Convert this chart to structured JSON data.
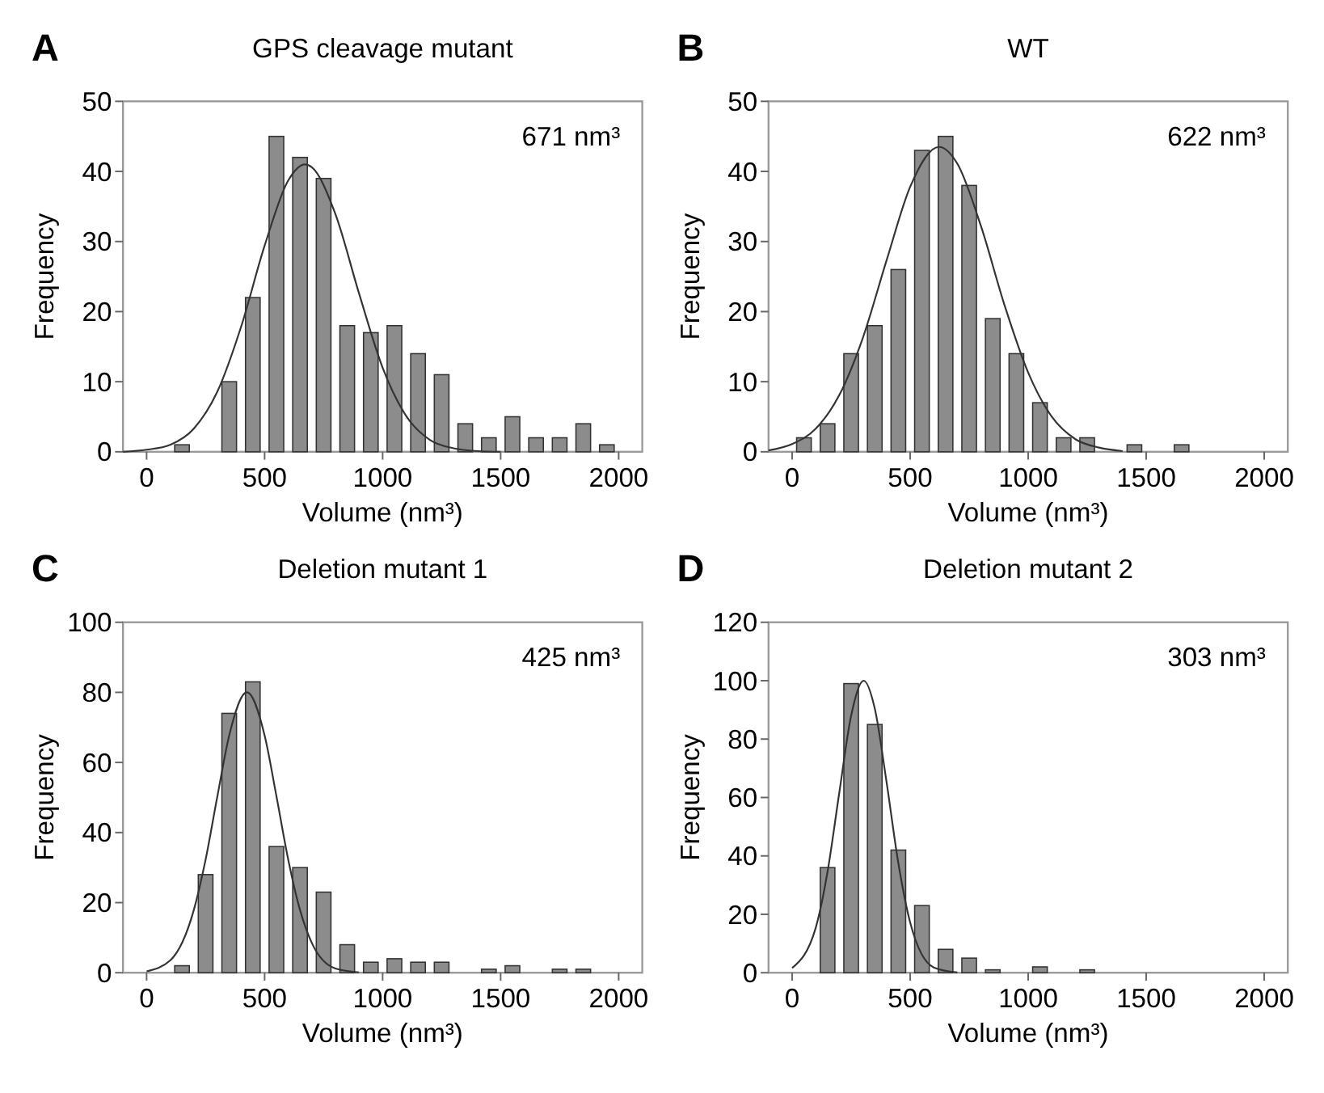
{
  "chart_data": [
    {
      "type": "histogram",
      "title": "GPS cleavage mutant",
      "xlabel": "Volume (nm³)",
      "ylabel": "Frequency",
      "annotations": [
        "A",
        "671 nm³"
      ],
      "xlim": [
        -100,
        2100
      ],
      "xticks": [
        0,
        500,
        1000,
        1500,
        2000
      ],
      "ylim": [
        0,
        50
      ],
      "yticks": [
        0,
        10,
        20,
        30,
        40,
        50
      ],
      "grid": false,
      "series": [
        {
          "color": "#8c8c8c",
          "bins": [
            100,
            200,
            300,
            400,
            500,
            600,
            700,
            800,
            900,
            1000,
            1100,
            1200,
            1300,
            1400,
            1500,
            1600,
            1700,
            1800,
            1900,
            2000
          ],
          "values": [
            1,
            0,
            10,
            22,
            45,
            42,
            39,
            18,
            17,
            18,
            14,
            11,
            4,
            2,
            5,
            2,
            2,
            4,
            1
          ]
        },
        {
          "type": "line",
          "color": "#333333",
          "marker": "none",
          "x": [
            -100,
            0,
            100,
            200,
            300,
            400,
            500,
            600,
            671,
            700,
            800,
            900,
            1000,
            1100,
            1200,
            1300,
            1400,
            1500
          ],
          "values": [
            0,
            0.3,
            1,
            3.3,
            8.6,
            17.8,
            29.4,
            38.7,
            41,
            40.6,
            33.9,
            22.6,
            12,
            5.1,
            1.7,
            0.5,
            0.1,
            0
          ]
        }
      ]
    },
    {
      "type": "histogram",
      "title": "WT",
      "xlabel": "Volume (nm³)",
      "ylabel": "Frequency",
      "annotations": [
        "B",
        "622 nm³"
      ],
      "xlim": [
        -100,
        2100
      ],
      "xticks": [
        0,
        500,
        1000,
        1500,
        2000
      ],
      "ylim": [
        0,
        50
      ],
      "yticks": [
        0,
        10,
        20,
        30,
        40,
        50
      ],
      "grid": false,
      "series": [
        {
          "color": "#8c8c8c",
          "bins": [
            0,
            100,
            200,
            300,
            400,
            500,
            600,
            700,
            800,
            900,
            1000,
            1100,
            1200,
            1300,
            1400,
            1500,
            1600,
            1700
          ],
          "values": [
            2,
            4,
            14,
            18,
            26,
            43,
            45,
            38,
            19,
            14,
            7,
            2,
            2,
            0,
            1,
            0,
            1
          ]
        },
        {
          "type": "line",
          "color": "#333333",
          "marker": "none",
          "x": [
            -100,
            0,
            100,
            200,
            300,
            400,
            500,
            622,
            700,
            800,
            900,
            1000,
            1100,
            1200,
            1300,
            1400
          ],
          "values": [
            0.2,
            1.1,
            3.3,
            8.1,
            16.3,
            27.3,
            37.8,
            43.5,
            41.1,
            32.2,
            20.9,
            11.3,
            5,
            1.8,
            0.6,
            0.1
          ]
        }
      ]
    },
    {
      "type": "histogram",
      "title": "Deletion mutant 1",
      "xlabel": "Volume (nm³)",
      "ylabel": "Frequency",
      "annotations": [
        "C",
        "425 nm³"
      ],
      "xlim": [
        -100,
        2100
      ],
      "xticks": [
        0,
        500,
        1000,
        1500,
        2000
      ],
      "ylim": [
        0,
        100
      ],
      "yticks": [
        0,
        20,
        40,
        60,
        80,
        100
      ],
      "grid": false,
      "series": [
        {
          "color": "#8c8c8c",
          "bins": [
            100,
            200,
            300,
            400,
            500,
            600,
            700,
            800,
            900,
            1000,
            1100,
            1200,
            1300,
            1400,
            1500,
            1600,
            1700,
            1800,
            1900
          ],
          "values": [
            2,
            28,
            74,
            83,
            36,
            30,
            23,
            8,
            3,
            4,
            3,
            3,
            0,
            1,
            2,
            0,
            1,
            1
          ]
        },
        {
          "type": "line",
          "color": "#333333",
          "marker": "none",
          "x": [
            0,
            100,
            200,
            250,
            300,
            350,
            425,
            500,
            550,
            600,
            650,
            700,
            800,
            900
          ],
          "values": [
            0.4,
            3.5,
            17.9,
            32.3,
            50.4,
            67.7,
            80,
            67.7,
            50.4,
            32.3,
            17.9,
            8.5,
            1.2,
            0.1
          ]
        }
      ]
    },
    {
      "type": "histogram",
      "title": "Deletion mutant 2",
      "xlabel": "Volume (nm³)",
      "ylabel": "Frequency",
      "annotations": [
        "D",
        "303 nm³"
      ],
      "xlim": [
        -100,
        2100
      ],
      "xticks": [
        0,
        500,
        1000,
        1500,
        2000
      ],
      "ylim": [
        0,
        120
      ],
      "yticks": [
        0,
        20,
        40,
        60,
        80,
        100,
        120
      ],
      "grid": false,
      "series": [
        {
          "color": "#8c8c8c",
          "bins": [
            100,
            200,
            300,
            400,
            500,
            600,
            700,
            800,
            900,
            1000,
            1100,
            1200,
            1300
          ],
          "values": [
            36,
            99,
            85,
            42,
            23,
            8,
            5,
            1,
            0,
            2,
            0,
            1
          ]
        },
        {
          "type": "line",
          "color": "#333333",
          "marker": "none",
          "x": [
            0,
            100,
            150,
            200,
            250,
            303,
            350,
            400,
            450,
            500,
            600,
            700
          ],
          "values": [
            1.6,
            15.4,
            34.6,
            61.8,
            88,
            100,
            90.5,
            65.3,
            37.5,
            17.2,
            1.8,
            0.1
          ]
        }
      ]
    }
  ]
}
